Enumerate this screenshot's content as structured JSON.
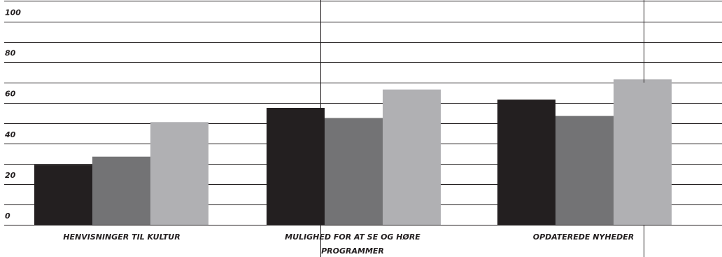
{
  "chart_data": {
    "type": "bar",
    "title": "",
    "xlabel": "",
    "ylabel": "",
    "ylim": [
      0,
      110
    ],
    "grid": true,
    "y_tick_labels": [
      {
        "value": 0,
        "label": "0"
      },
      {
        "value": 20,
        "label": "20"
      },
      {
        "value": 40,
        "label": "40"
      },
      {
        "value": 60,
        "label": "60"
      },
      {
        "value": 80,
        "label": "80"
      },
      {
        "value": 100,
        "label": "100"
      }
    ],
    "categories": [
      {
        "lines": [
          "HENVISNINGER TIL KULTUR"
        ]
      },
      {
        "lines": [
          "MULIGHED FOR AT SE OG HØRE",
          "PROGRAMMER"
        ]
      },
      {
        "lines": [
          "OPDATEREDE NYHEDER"
        ]
      }
    ],
    "series": [
      {
        "color": "#231f20",
        "values": [
          29.5,
          57.5,
          61.5
        ]
      },
      {
        "color": "#737375",
        "values": [
          33.5,
          52.5,
          53.5
        ]
      },
      {
        "color": "#b0b0b3",
        "values": [
          50.5,
          66.5,
          71.5
        ]
      }
    ]
  }
}
